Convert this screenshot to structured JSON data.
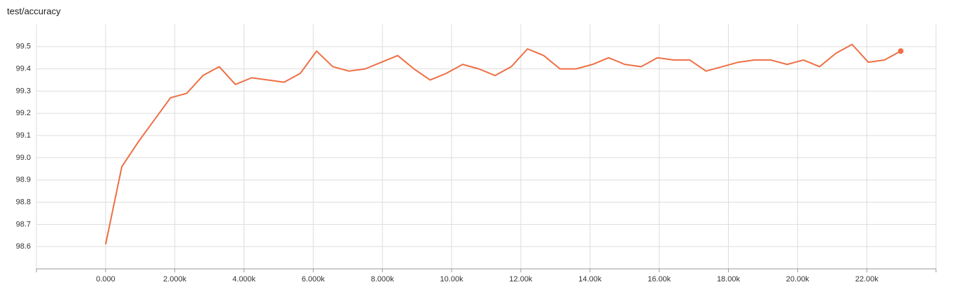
{
  "chart_data": {
    "type": "line",
    "title": "test/accuracy",
    "x": [
      0,
      469,
      938,
      1407,
      1876,
      2345,
      2814,
      3283,
      3752,
      4221,
      4690,
      5159,
      5628,
      6097,
      6566,
      7035,
      7504,
      7973,
      8442,
      8911,
      9380,
      9849,
      10318,
      10787,
      11256,
      11725,
      12194,
      12663,
      13132,
      13601,
      14070,
      14539,
      15008,
      15477,
      15946,
      16415,
      16884,
      17353,
      17822,
      18291,
      18760,
      19229,
      19698,
      20167,
      20636,
      21105,
      21574,
      22043,
      22512,
      22981
    ],
    "series": [
      {
        "color": "#ee6f44",
        "values": [
          98.61,
          98.96,
          99.07,
          99.17,
          99.27,
          99.29,
          99.37,
          99.41,
          99.33,
          99.36,
          99.35,
          99.34,
          99.38,
          99.48,
          99.41,
          99.39,
          99.4,
          99.43,
          99.46,
          99.4,
          99.35,
          99.38,
          99.42,
          99.4,
          99.37,
          99.41,
          99.49,
          99.46,
          99.4,
          99.4,
          99.42,
          99.45,
          99.42,
          99.41,
          99.45,
          99.44,
          99.44,
          99.39,
          99.41,
          99.43,
          99.44,
          99.44,
          99.42,
          99.44,
          99.41,
          99.47,
          99.51,
          99.43,
          99.44,
          99.48
        ]
      }
    ],
    "xlim": [
      -2000,
      24000
    ],
    "xticks": [
      {
        "value": 0,
        "label": "0.000"
      },
      {
        "value": 2000,
        "label": "2.000k"
      },
      {
        "value": 4000,
        "label": "4.000k"
      },
      {
        "value": 6000,
        "label": "6.000k"
      },
      {
        "value": 8000,
        "label": "8.000k"
      },
      {
        "value": 10000,
        "label": "10.00k"
      },
      {
        "value": 12000,
        "label": "12.00k"
      },
      {
        "value": 14000,
        "label": "14.00k"
      },
      {
        "value": 16000,
        "label": "16.00k"
      },
      {
        "value": 18000,
        "label": "18.00k"
      },
      {
        "value": 20000,
        "label": "20.00k"
      },
      {
        "value": 22000,
        "label": "22.00k"
      }
    ],
    "ylim": [
      98.5,
      99.6
    ],
    "yticks": [
      98.6,
      98.7,
      98.8,
      98.9,
      {
        "value": 99,
        "label": "99.0"
      },
      99.1,
      99.2,
      99.3,
      99.4,
      99.5
    ],
    "grid": true
  }
}
